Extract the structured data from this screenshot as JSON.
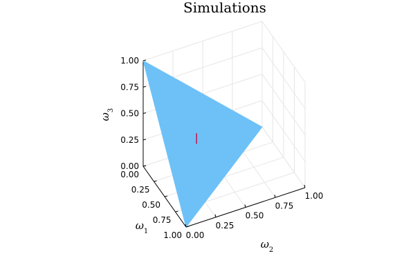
{
  "chart_data": {
    "type": "surface3d",
    "title": "Simulations",
    "axes": {
      "x": {
        "label_base": "ω",
        "label_sub": "1",
        "ticks": [
          "0.00",
          "0.25",
          "0.50",
          "0.75",
          "1.00"
        ],
        "range": [
          0,
          1
        ]
      },
      "y": {
        "label_base": "ω",
        "label_sub": "2",
        "ticks": [
          "0.00",
          "0.25",
          "0.50",
          "0.75",
          "1.00"
        ],
        "range": [
          0,
          1
        ]
      },
      "z": {
        "label_base": "ω",
        "label_sub": "3",
        "ticks": [
          "0.00",
          "0.25",
          "0.50",
          "0.75",
          "1.00"
        ],
        "range": [
          0,
          1
        ]
      }
    },
    "grid": true,
    "series": [
      {
        "type": "triangle_surface",
        "vertices": [
          [
            1,
            0,
            0
          ],
          [
            0,
            1,
            0
          ],
          [
            0,
            0,
            1
          ]
        ],
        "color": "#6ec1f7"
      },
      {
        "type": "line3d",
        "points": [
          [
            0.33,
            0.33,
            0.38
          ],
          [
            0.33,
            0.33,
            0.28
          ]
        ],
        "color": "#c4134a"
      }
    ]
  }
}
